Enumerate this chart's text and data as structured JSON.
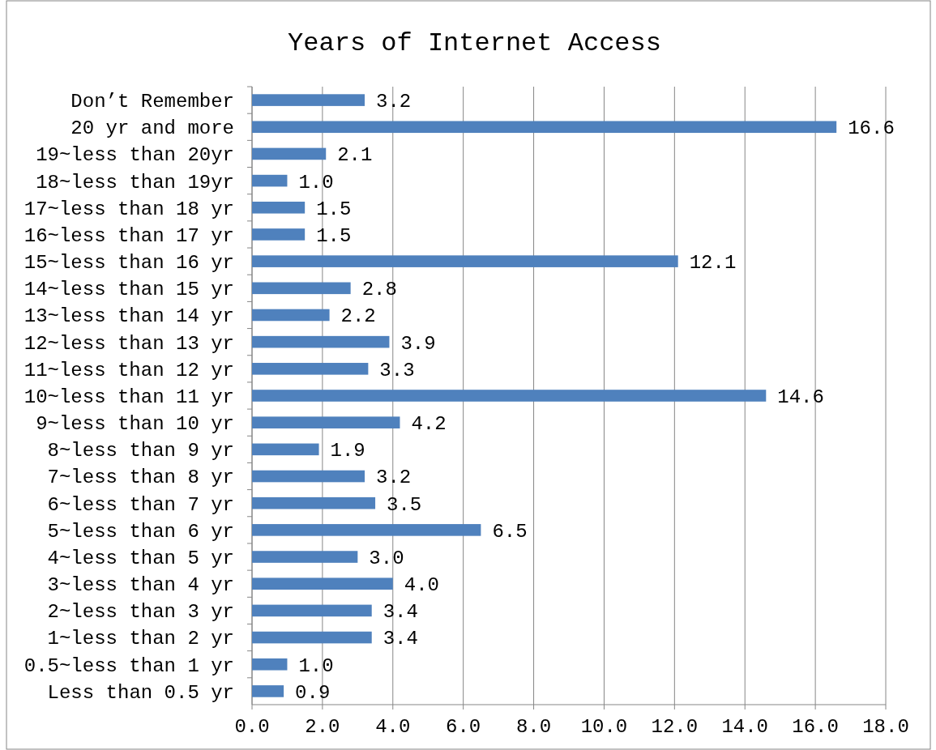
{
  "chart_data": {
    "type": "bar",
    "orientation": "horizontal",
    "title": "Years of Internet Access",
    "categories": [
      "Don’t Remember",
      "20 yr and more",
      "19~less than 20yr",
      "18~less than 19yr",
      "17~less than 18 yr",
      "16~less than 17 yr",
      "15~less than 16 yr",
      "14~less than 15 yr",
      "13~less than 14 yr",
      "12~less than 13 yr",
      "11~less than 12 yr",
      "10~less than 11 yr",
      "9~less than 10 yr",
      "8~less than 9 yr",
      "7~less than 8 yr",
      "6~less than 7 yr",
      "5~less than 6 yr",
      "4~less than 5 yr",
      "3~less than 4 yr",
      "2~less than 3 yr",
      "1~less than 2 yr",
      "0.5~less than 1 yr",
      "Less than 0.5 yr"
    ],
    "values": [
      3.2,
      16.6,
      2.1,
      1.0,
      1.5,
      1.5,
      12.1,
      2.8,
      2.2,
      3.9,
      3.3,
      14.6,
      4.2,
      1.9,
      3.2,
      3.5,
      6.5,
      3.0,
      4.0,
      3.4,
      3.4,
      1.0,
      0.9
    ],
    "color": "#4f81bd",
    "value_labels": [
      "3.2",
      "16.6",
      "2.1",
      "1.0",
      "1.5",
      "1.5",
      "12.1",
      "2.8",
      "2.2",
      "3.9",
      "3.3",
      "14.6",
      "4.2",
      "1.9",
      "3.2",
      "3.5",
      "6.5",
      "3.0",
      "4.0",
      "3.4",
      "3.4",
      "1.0",
      "0.9"
    ],
    "xlim": [
      0,
      18
    ],
    "xticks": [
      {
        "value": 0,
        "label": "0.0"
      },
      {
        "value": 2,
        "label": "2.0"
      },
      {
        "value": 4,
        "label": "4.0"
      },
      {
        "value": 6,
        "label": "6.0"
      },
      {
        "value": 8,
        "label": "8.0"
      },
      {
        "value": 10,
        "label": "10.0"
      },
      {
        "value": 12,
        "label": "12.0"
      },
      {
        "value": 14,
        "label": "14.0"
      },
      {
        "value": 16,
        "label": "16.0"
      },
      {
        "value": 18,
        "label": "18.0"
      }
    ],
    "grid": "x"
  }
}
